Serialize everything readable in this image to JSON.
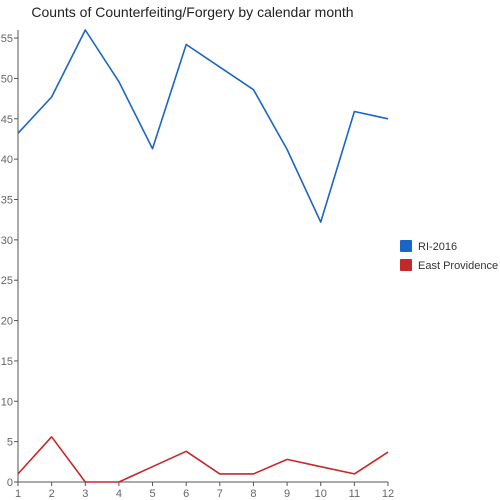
{
  "chart_data": {
    "type": "line",
    "title": "Counts of Counterfeiting/Forgery by calendar month",
    "xlabel": "",
    "ylabel": "",
    "x": [
      1,
      2,
      3,
      4,
      5,
      6,
      7,
      8,
      9,
      10,
      11,
      12
    ],
    "xlim": [
      1,
      12
    ],
    "ylim": [
      0,
      56
    ],
    "yticks": [
      0,
      5,
      10,
      15,
      20,
      25,
      30,
      35,
      40,
      45,
      50,
      55
    ],
    "grid": false,
    "legend_position": "right",
    "series": [
      {
        "name": "RI-2016",
        "color": "#1a66c6",
        "values": [
          43.2,
          47.7,
          56.0,
          49.6,
          41.3,
          54.2,
          51.4,
          48.6,
          41.2,
          32.2,
          45.9,
          45.0
        ]
      },
      {
        "name": "East Providence",
        "color": "#c62828",
        "values": [
          1.0,
          5.6,
          0.0,
          0.0,
          1.9,
          3.8,
          1.0,
          1.0,
          2.8,
          1.9,
          1.0,
          3.7
        ]
      }
    ]
  }
}
